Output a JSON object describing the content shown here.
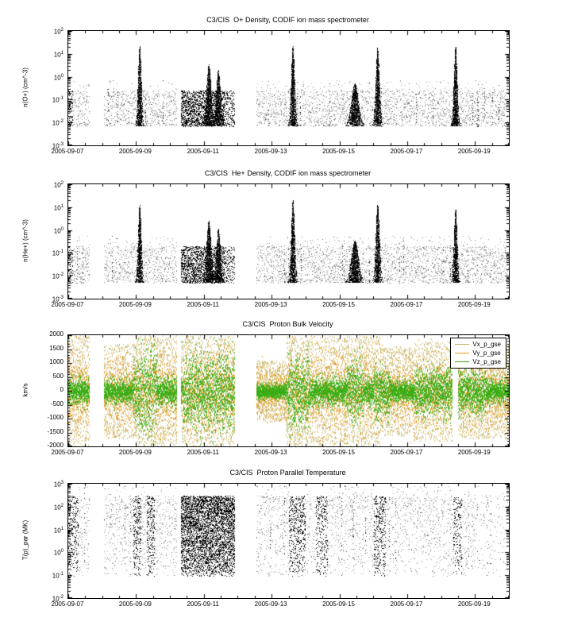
{
  "chart_data": [
    {
      "type": "scatter",
      "title": "C3/CIS  O+ Density, CODIF ion mass spectrometer",
      "ylabel": "n(O+) (cm^-3)",
      "yscale": "log",
      "ylim": [
        0.001,
        100
      ],
      "ytick_exponents": [
        2,
        1,
        0,
        -1,
        -2,
        -3
      ],
      "x_start_date": "2005-09-07",
      "x_span_days": 13,
      "xticks": [
        {
          "day": 0,
          "label": "2005-09-07"
        },
        {
          "day": 2,
          "label": "2005-09-09"
        },
        {
          "day": 4,
          "label": "2005-09-11"
        },
        {
          "day": 6,
          "label": "2005-09-13"
        },
        {
          "day": 8,
          "label": "2005-09-15"
        },
        {
          "day": 10,
          "label": "2005-09-17"
        },
        {
          "day": 12,
          "label": "2005-09-19"
        }
      ],
      "point_color": "#9a9a9a",
      "dense_color": "#000000",
      "noise_band": [
        0.007,
        0.25
      ],
      "skew": 1.1,
      "gaps_days": [
        [
          0.63,
          1.05
        ],
        [
          3.2,
          3.32
        ],
        [
          4.91,
          5.54
        ]
      ],
      "dense_days": [
        [
          0,
          0.12,
          14
        ],
        [
          3.32,
          4.6,
          30
        ],
        [
          4.6,
          4.91,
          14
        ]
      ],
      "spikes": [
        {
          "day": 2.1,
          "peak": 25,
          "width": 0.14
        },
        {
          "day": 4.14,
          "peak": 3.5,
          "width": 0.2
        },
        {
          "day": 4.42,
          "peak": 2,
          "width": 0.18
        },
        {
          "day": 6.62,
          "peak": 25,
          "width": 0.15
        },
        {
          "day": 8.45,
          "peak": 0.5,
          "width": 0.3
        },
        {
          "day": 9.12,
          "peak": 20,
          "width": 0.16
        },
        {
          "day": 11.42,
          "peak": 25,
          "width": 0.14
        }
      ]
    },
    {
      "type": "scatter",
      "title": "C3/CIS  He+ Density, CODIF ion mass spectrometer",
      "ylabel": "n(He+) (cm^-3)",
      "yscale": "log",
      "ylim": [
        0.001,
        100
      ],
      "ytick_exponents": [
        2,
        1,
        0,
        -1,
        -2,
        -3
      ],
      "x_start_date": "2005-09-07",
      "x_span_days": 13,
      "xticks": [
        {
          "day": 0,
          "label": "2005-09-07"
        },
        {
          "day": 2,
          "label": "2005-09-09"
        },
        {
          "day": 4,
          "label": "2005-09-11"
        },
        {
          "day": 6,
          "label": "2005-09-13"
        },
        {
          "day": 8,
          "label": "2005-09-15"
        },
        {
          "day": 10,
          "label": "2005-09-17"
        },
        {
          "day": 12,
          "label": "2005-09-19"
        }
      ],
      "point_color": "#9a9a9a",
      "dense_color": "#000000",
      "noise_band": [
        0.005,
        0.2
      ],
      "skew": 1.1,
      "gaps_days": [
        [
          0.63,
          1.05
        ],
        [
          3.2,
          3.32
        ],
        [
          4.91,
          5.54
        ]
      ],
      "dense_days": [
        [
          0,
          0.12,
          12
        ],
        [
          3.32,
          4.6,
          28
        ],
        [
          4.6,
          4.91,
          12
        ]
      ],
      "spikes": [
        {
          "day": 2.1,
          "peak": 14,
          "width": 0.14
        },
        {
          "day": 4.14,
          "peak": 2.5,
          "width": 0.2
        },
        {
          "day": 4.42,
          "peak": 1.2,
          "width": 0.18
        },
        {
          "day": 6.62,
          "peak": 22,
          "width": 0.15
        },
        {
          "day": 8.45,
          "peak": 0.35,
          "width": 0.3
        },
        {
          "day": 9.12,
          "peak": 14,
          "width": 0.16
        },
        {
          "day": 11.42,
          "peak": 9,
          "width": 0.14
        }
      ]
    },
    {
      "type": "scatter",
      "title": "C3/CIS  Proton Bulk Velocity",
      "ylabel": "km/s",
      "yscale": "linear",
      "ylim": [
        -2000,
        2000
      ],
      "ytick_values": [
        2000,
        1500,
        1000,
        500,
        0,
        -500,
        -1000,
        -1500,
        -2000
      ],
      "x_start_date": "2005-09-07",
      "x_span_days": 13,
      "xticks": [
        {
          "day": 0,
          "label": "2005-09-07"
        },
        {
          "day": 2,
          "label": "2005-09-09"
        },
        {
          "day": 4,
          "label": "2005-09-11"
        },
        {
          "day": 6,
          "label": "2005-09-13"
        },
        {
          "day": 8,
          "label": "2005-09-15"
        },
        {
          "day": 10,
          "label": "2005-09-17"
        },
        {
          "day": 12,
          "label": "2005-09-19"
        }
      ],
      "gaps_days": [
        [
          0.63,
          1.05
        ],
        [
          3.2,
          3.32
        ],
        [
          4.91,
          5.54
        ],
        [
          11.33,
          11.5
        ]
      ],
      "series": [
        {
          "name": "Vx_p_gse",
          "color": "#c8b464",
          "spread": 2000,
          "dist": "uniform"
        },
        {
          "name": "Vy_p_gse",
          "color": "#e69b1d",
          "spread": 650,
          "dist": "gauss"
        },
        {
          "name": "Vz_p_gse",
          "color": "#35ad13",
          "spread": 230,
          "dist": "gauss"
        }
      ],
      "amp_segments": [
        [
          0,
          0.63,
          1
        ],
        [
          1.05,
          2.0,
          0.85
        ],
        [
          2.0,
          3.2,
          1
        ],
        [
          3.32,
          4.91,
          1
        ],
        [
          5.54,
          6.4,
          0.55
        ],
        [
          6.4,
          9.2,
          1
        ],
        [
          9.2,
          10.2,
          0.8
        ],
        [
          10.2,
          11.33,
          0.9
        ],
        [
          11.5,
          13,
          0.85
        ]
      ],
      "green_bursts": [
        [
          1.9,
          2.6,
          850
        ],
        [
          3.35,
          4.91,
          700
        ],
        [
          6.45,
          7.1,
          650
        ],
        [
          8.2,
          8.7,
          550
        ],
        [
          9.0,
          9.5,
          550
        ],
        [
          10.2,
          11.33,
          450
        ],
        [
          11.5,
          12.3,
          450
        ]
      ],
      "legend": {
        "position": "top-right",
        "entries": [
          "Vx_p_gse",
          "Vy_p_gse",
          "Vz_p_gse"
        ]
      }
    },
    {
      "type": "scatter",
      "title": "C3/CIS  Proton Parallel Temperature",
      "ylabel": "T(p)_par (MK)",
      "yscale": "log",
      "ylim": [
        0.01,
        1000
      ],
      "ytick_exponents": [
        3,
        2,
        1,
        0,
        -1,
        -2
      ],
      "x_start_date": "2005-09-07",
      "x_span_days": 13,
      "xticks": [
        {
          "day": 0,
          "label": "2005-09-07"
        },
        {
          "day": 2,
          "label": "2005-09-09"
        },
        {
          "day": 4,
          "label": "2005-09-11"
        },
        {
          "day": 6,
          "label": "2005-09-13"
        },
        {
          "day": 8,
          "label": "2005-09-15"
        },
        {
          "day": 10,
          "label": "2005-09-17"
        },
        {
          "day": 12,
          "label": "2005-09-19"
        }
      ],
      "point_color": "#9a9a9a",
      "dense_color": "#000000",
      "noise_band": [
        0.09,
        300
      ],
      "skew": 0.75,
      "gaps_days": [
        [
          0.63,
          1.05
        ],
        [
          3.2,
          3.32
        ],
        [
          4.91,
          5.54
        ]
      ],
      "dense_days": [
        [
          0,
          0.3,
          20
        ],
        [
          1.9,
          2.15,
          26
        ],
        [
          2.3,
          2.55,
          26
        ],
        [
          3.32,
          4.91,
          60
        ],
        [
          6.5,
          7.0,
          24
        ],
        [
          7.3,
          7.65,
          20
        ],
        [
          9.0,
          9.35,
          24
        ],
        [
          11.35,
          11.6,
          18
        ]
      ],
      "sparse_days": [
        [
          12.0,
          13,
          0.35
        ]
      ],
      "spikes": []
    }
  ]
}
